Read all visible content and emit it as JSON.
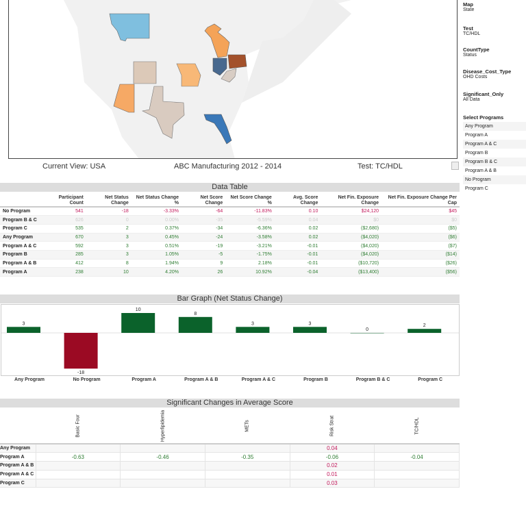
{
  "map": {
    "caption_left": "Current View: USA",
    "caption_center": "ABC Manufacturing 2012 - 2014",
    "caption_right": "Test: TC/HDL",
    "states": [
      {
        "name": "Montana",
        "color": "#7fbfdf"
      },
      {
        "name": "Michigan",
        "color": "#f4a358"
      },
      {
        "name": "Colorado",
        "color": "#dcc9b8"
      },
      {
        "name": "Missouri",
        "color": "#f8b877"
      },
      {
        "name": "Arizona",
        "color": "#f6a965"
      },
      {
        "name": "Texas",
        "color": "#d9cbc0"
      },
      {
        "name": "Ohio",
        "color": "#48698f"
      },
      {
        "name": "Pennsylvania",
        "color": "#a3512b"
      },
      {
        "name": "West Virginia",
        "color": "#d8cdc4"
      },
      {
        "name": "Florida",
        "color": "#3a78b8"
      }
    ]
  },
  "filters": [
    {
      "label": "Map",
      "value": "State"
    },
    {
      "label": "Test",
      "value": "TC/HDL"
    },
    {
      "label": "CountType",
      "value": "Status"
    },
    {
      "label": "Disease_Cost_Type",
      "value": "OHD Costs"
    },
    {
      "label": "Significant_Only",
      "value": "All Data"
    }
  ],
  "select_programs": {
    "label": "Select Programs",
    "options": [
      "Any Program",
      "Program A",
      "Program A & C",
      "Program B",
      "Program B & C",
      "Program A & B",
      "No Program",
      "Program C"
    ]
  },
  "data_table": {
    "title": "Data Table",
    "columns": [
      "",
      "Participant Count",
      "Net Status Change",
      "Net Status Change %",
      "Net Score Change",
      "Net Score Change %",
      "Avg. Score Change",
      "Net Fin. Exposure Change",
      "Net Fin. Exposure Change Per Cap"
    ],
    "rows": [
      {
        "status": "red",
        "cells": [
          "No Program",
          "541",
          "-18",
          "-3.33%",
          "-64",
          "-11.83%",
          "0.10",
          "$24,120",
          "$45"
        ]
      },
      {
        "status": "faint",
        "cells": [
          "Program B & C",
          "626",
          "0",
          "0.00%",
          "-35",
          "-5.59%",
          "0.04",
          "$0",
          "$0"
        ]
      },
      {
        "status": "green",
        "cells": [
          "Program C",
          "535",
          "2",
          "0.37%",
          "-34",
          "-6.36%",
          "0.02",
          "($2,680)",
          "($5)"
        ]
      },
      {
        "status": "green",
        "cells": [
          "Any Program",
          "670",
          "3",
          "0.45%",
          "-24",
          "-3.58%",
          "0.02",
          "($4,020)",
          "($6)"
        ]
      },
      {
        "status": "green",
        "cells": [
          "Program A & C",
          "592",
          "3",
          "0.51%",
          "-19",
          "-3.21%",
          "-0.01",
          "($4,020)",
          "($7)"
        ]
      },
      {
        "status": "green",
        "cells": [
          "Program B",
          "285",
          "3",
          "1.05%",
          "-5",
          "-1.75%",
          "-0.01",
          "($4,020)",
          "($14)"
        ]
      },
      {
        "status": "green",
        "cells": [
          "Program A & B",
          "412",
          "8",
          "1.94%",
          "9",
          "2.18%",
          "-0.01",
          "($10,720)",
          "($26)"
        ]
      },
      {
        "status": "green",
        "cells": [
          "Program A",
          "238",
          "10",
          "4.20%",
          "26",
          "10.92%",
          "-0.04",
          "($13,400)",
          "($56)"
        ]
      }
    ]
  },
  "chart_data": {
    "type": "bar",
    "title": "Bar Graph (Net Status Change)",
    "categories": [
      "Any Program",
      "No Program",
      "Program A",
      "Program A & B",
      "Program A & C",
      "Program B",
      "Program B & C",
      "Program C"
    ],
    "values": [
      3,
      -18,
      10,
      8,
      3,
      3,
      0,
      2
    ],
    "colors": {
      "positive": "#0b622b",
      "negative": "#9b0a23"
    },
    "grid": false
  },
  "significant": {
    "title": "Significant Changes in Average Score",
    "columns": [
      "Basic Four",
      "Hyperlipidemia",
      "METs",
      "Risk Strat",
      "TC/HDL"
    ],
    "rows": [
      {
        "label": "Any Program",
        "cells": [
          "",
          "",
          "",
          "0.04",
          ""
        ]
      },
      {
        "label": "Program A",
        "cells": [
          "-0.63",
          "-0.46",
          "-0.35",
          "-0.06",
          "-0.04"
        ]
      },
      {
        "label": "Program A & B",
        "cells": [
          "",
          "",
          "",
          "0.02",
          ""
        ]
      },
      {
        "label": "Program A & C",
        "cells": [
          "",
          "",
          "",
          "0.01",
          ""
        ]
      },
      {
        "label": "Program C",
        "cells": [
          "",
          "",
          "",
          "0.03",
          ""
        ]
      }
    ]
  }
}
